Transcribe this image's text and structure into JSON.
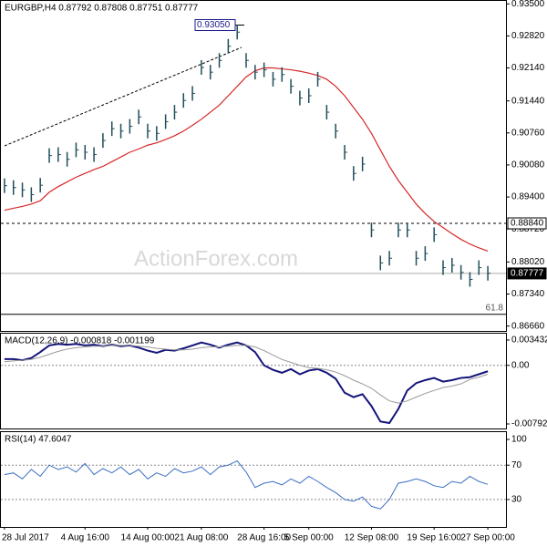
{
  "chart_data": [
    {
      "type": "ohlc",
      "title": "EURGBP,H4  0.87792 0.87808 0.87751 0.87777",
      "watermark": "ActionForex.com",
      "color": "#1f4e5a",
      "values": [
        0.8964,
        0.896,
        0.8955,
        0.8945,
        0.8965,
        0.9028,
        0.903,
        0.902,
        0.904,
        0.9035,
        0.903,
        0.906,
        0.9085,
        0.908,
        0.909,
        0.911,
        0.908,
        0.9075,
        0.91,
        0.912,
        0.9145,
        0.916,
        0.9215,
        0.9205,
        0.923,
        0.926,
        0.929,
        0.923,
        0.9205,
        0.921,
        0.919,
        0.92,
        0.9175,
        0.915,
        0.9155,
        0.919,
        0.912,
        0.908,
        0.9035,
        0.899,
        0.901,
        0.887,
        0.88,
        0.881,
        0.887,
        0.887,
        0.881,
        0.882,
        0.886,
        0.879,
        0.8795,
        0.878,
        0.8765,
        0.879,
        0.8778
      ],
      "ma": {
        "color": "#d62728",
        "values": [
          0.8912,
          0.8916,
          0.892,
          0.8925,
          0.8932,
          0.895,
          0.8962,
          0.8972,
          0.8982,
          0.899,
          0.8998,
          0.9005,
          0.9015,
          0.9025,
          0.9035,
          0.9042,
          0.905,
          0.9055,
          0.9062,
          0.907,
          0.908,
          0.9092,
          0.9105,
          0.912,
          0.9135,
          0.9155,
          0.9175,
          0.9195,
          0.9208,
          0.9214,
          0.9214,
          0.9212,
          0.921,
          0.9207,
          0.9203,
          0.9198,
          0.919,
          0.9175,
          0.9155,
          0.913,
          0.9105,
          0.9075,
          0.904,
          0.9005,
          0.8975,
          0.895,
          0.8925,
          0.8905,
          0.8888,
          0.8875,
          0.8862,
          0.885,
          0.884,
          0.8832,
          0.8825
        ]
      },
      "ylim": [
        0.93563,
        0.86556
      ],
      "yticks": [
        {
          "value": 0.935,
          "label": "0.93500"
        },
        {
          "value": 0.9282,
          "label": "0.92820"
        },
        {
          "value": 0.9214,
          "label": "0.92140"
        },
        {
          "value": 0.9144,
          "label": "0.91440"
        },
        {
          "value": 0.9076,
          "label": "0.90760"
        },
        {
          "value": 0.9008,
          "label": "0.90080"
        },
        {
          "value": 0.894,
          "label": "0.89400"
        },
        {
          "value": 0.8872,
          "label": "0.88720"
        },
        {
          "value": 0.8802,
          "label": "0.88020"
        },
        {
          "value": 0.8734,
          "label": "0.87340"
        },
        {
          "value": 0.8666,
          "label": "0.86660"
        }
      ],
      "levels": [
        {
          "value": 0.8884,
          "label": "0.88840"
        },
        {
          "value": 0.87777,
          "label": "0.87777"
        }
      ],
      "fib": {
        "value": 0.8691,
        "label": "61.8"
      },
      "peak": {
        "value": 0.9305,
        "label": "0.93050"
      }
    },
    {
      "type": "line",
      "title": "MACD(12,26,9) -0.000818 -0.001199",
      "series": [
        {
          "color": "#14147a",
          "values": [
            0.00085,
            0.00085,
            0.0007,
            0.001,
            0.0018,
            0.0027,
            0.0029,
            0.0028,
            0.0029,
            0.0027,
            0.0028,
            0.0026,
            0.0028,
            0.0026,
            0.0027,
            0.0024,
            0.002,
            0.0017,
            0.0021,
            0.002,
            0.0023,
            0.0027,
            0.0031,
            0.0028,
            0.0024,
            0.0028,
            0.0031,
            0.0027,
            0.0018,
            0,
            -0.0006,
            -0.001,
            -0.0005,
            -0.0012,
            -0.0007,
            -0.0005,
            -0.001,
            -0.0018,
            -0.0037,
            -0.0043,
            -0.0039,
            -0.0055,
            -0.0076,
            -0.0078,
            -0.0059,
            -0.0034,
            -0.0024,
            -0.002,
            -0.0017,
            -0.0022,
            -0.002,
            -0.0017,
            -0.0016,
            -0.0012,
            -0.0008
          ]
        },
        {
          "color": "#999999",
          "values": [
            0.0005,
            0.0006,
            0.0007,
            0.0008,
            0.0011,
            0.0015,
            0.0019,
            0.0022,
            0.0024,
            0.0025,
            0.0026,
            0.0026,
            0.0027,
            0.0027,
            0.0027,
            0.0026,
            0.0025,
            0.0023,
            0.0022,
            0.0021,
            0.0021,
            0.0022,
            0.0024,
            0.0025,
            0.0025,
            0.0026,
            0.0027,
            0.0027,
            0.0025,
            0.002,
            0.0014,
            0.0008,
            0.0004,
            0,
            -0.0003,
            -0.0004,
            -0.0006,
            -0.0009,
            -0.0014,
            -0.002,
            -0.0025,
            -0.0031,
            -0.004,
            -0.0048,
            -0.0051,
            -0.0048,
            -0.0043,
            -0.0038,
            -0.0034,
            -0.003,
            -0.0028,
            -0.0025,
            -0.0019,
            -0.0016,
            -0.0012
          ]
        }
      ],
      "ylim": [
        0.00429,
        -0.00854
      ],
      "yticks": [
        0.003432,
        {
          "value": 0,
          "label": "0.00"
        },
        -0.007925
      ],
      "dotted": [
        0
      ]
    },
    {
      "type": "line",
      "title": "RSI(14) 47.6047",
      "series": [
        {
          "color": "#3a6fc4",
          "values": [
            59,
            61,
            54,
            65,
            57,
            70,
            65,
            68,
            62,
            72,
            59,
            66,
            61,
            68,
            59,
            65,
            54,
            61,
            57,
            66,
            61,
            63,
            68,
            59,
            68,
            70,
            75,
            62,
            44,
            49,
            51,
            47,
            54,
            49,
            57,
            51,
            44,
            38,
            30,
            28,
            33,
            22,
            19,
            30,
            49,
            51,
            54,
            51,
            46,
            44,
            51,
            49,
            57,
            51,
            47.6
          ]
        }
      ],
      "ylim": [
        108.5,
        -2
      ],
      "yticks": [
        100,
        70,
        30
      ],
      "dotted": [
        70,
        30
      ],
      "categories": [
        "28 Jul 2017",
        null,
        null,
        null,
        null,
        null,
        null,
        null,
        null,
        "4 Aug 16:00",
        null,
        null,
        null,
        null,
        null,
        null,
        "14 Aug 00:00",
        null,
        null,
        null,
        null,
        null,
        "21 Aug 08:00",
        null,
        null,
        null,
        null,
        null,
        null,
        "28 Aug 16:00",
        null,
        null,
        null,
        null,
        "5 Sep 00:00",
        null,
        null,
        null,
        null,
        null,
        null,
        "12 Sep 08:00",
        null,
        null,
        null,
        null,
        null,
        null,
        "19 Sep 16:00",
        null,
        null,
        null,
        null,
        null,
        "27 Sep 00:00"
      ]
    }
  ]
}
